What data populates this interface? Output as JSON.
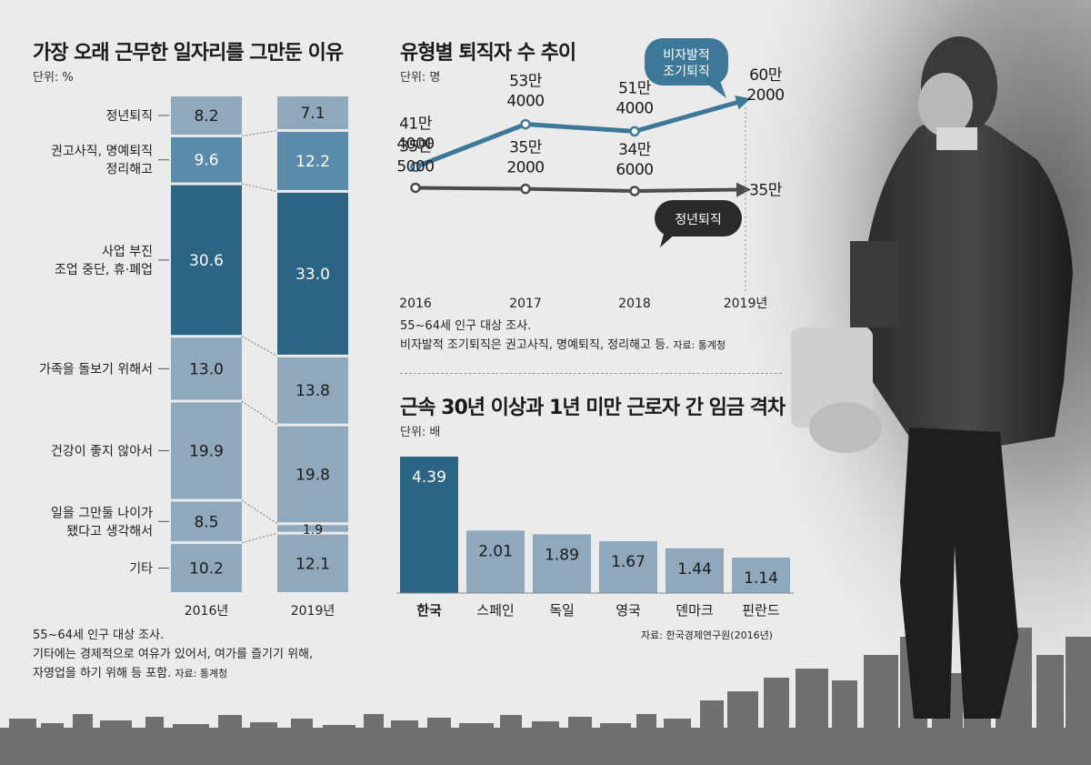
{
  "colors": {
    "dark": "#2c6483",
    "mid": "#5a8bab",
    "light": "#8fa8bb",
    "lineDark": "#3e7898",
    "lineGray": "#4b4b4b"
  },
  "chart_data": [
    {
      "type": "stacked-bar",
      "title": "가장 오래 근무한 일자리를 그만둔 이유",
      "unit": "단위: %",
      "categories": [
        "2016년",
        "2019년"
      ],
      "segments": [
        {
          "label": "정년퇴직",
          "values": [
            8.2,
            7.1
          ],
          "value_labels": [
            "8.2",
            "7.1"
          ],
          "tone": "light"
        },
        {
          "label": "권고사직, 명예퇴직\n정리해고",
          "values": [
            9.6,
            12.2
          ],
          "value_labels": [
            "9.6",
            "12.2"
          ],
          "tone": "mid"
        },
        {
          "label": "사업 부진\n조업 중단, 휴·폐업",
          "values": [
            30.6,
            33.0
          ],
          "value_labels": [
            "30.6",
            "33.0"
          ],
          "tone": "dark"
        },
        {
          "label": "가족을 돌보기 위해서",
          "values": [
            13.0,
            13.8
          ],
          "value_labels": [
            "13.0",
            "13.8"
          ],
          "tone": "light"
        },
        {
          "label": "건강이 좋지 않아서",
          "values": [
            19.9,
            19.8
          ],
          "value_labels": [
            "19.9",
            "19.8"
          ],
          "tone": "light"
        },
        {
          "label": "일을 그만둘 나이가\n됐다고 생각해서",
          "values": [
            8.5,
            1.9
          ],
          "value_labels": [
            "8.5",
            "1.9"
          ],
          "tone": "light"
        },
        {
          "label": "기타",
          "values": [
            10.2,
            12.1
          ],
          "value_labels": [
            "10.2",
            "12.1"
          ],
          "tone": "light"
        }
      ]
    },
    {
      "type": "line",
      "title": "유형별 퇴직자 수 추이",
      "unit": "단위: 명",
      "x": [
        "2016",
        "2017",
        "2018",
        "2019년"
      ],
      "series": [
        {
          "name": "비자발적\n조기퇴직",
          "values": [
            414000,
            534000,
            514000,
            602000
          ],
          "point_labels": [
            "41만\n4000",
            "53만\n4000",
            "51만\n4000",
            "60만\n2000"
          ],
          "color": "#3e7898"
        },
        {
          "name": "정년퇴직",
          "values": [
            355000,
            352000,
            346000,
            350000
          ],
          "point_labels": [
            "35만\n5000",
            "35만\n2000",
            "34만\n6000",
            "35만"
          ],
          "color": "#4b4b4b"
        }
      ]
    },
    {
      "type": "bar",
      "title": "근속 30년 이상과 1년 미만 근로자 간 임금 격차",
      "unit": "단위: 배",
      "categories": [
        "한국",
        "스페인",
        "독일",
        "영국",
        "덴마크",
        "핀란드"
      ],
      "values": [
        4.39,
        2.01,
        1.89,
        1.67,
        1.44,
        1.14
      ],
      "value_labels": [
        "4.39",
        "2.01",
        "1.89",
        "1.67",
        "1.44",
        "1.14"
      ],
      "highlight": "한국"
    }
  ],
  "notes": {
    "stack_note1": "55~64세 인구 대상 조사.",
    "stack_note2": "기타에는 경제적으로 여유가 있어서, 여가를 즐기기 위해,",
    "stack_note3": "자영업을 하기 위해 등 포함.",
    "stack_source": "자료: 통계청",
    "line_note1": "55~64세 인구 대상 조사.",
    "line_note2": "비자발적 조기퇴직은 권고사직, 명예퇴직, 정리해고 등.",
    "line_source": "자료: 통계청",
    "bar_source": "자료: 한국경제연구원(2016년)"
  }
}
